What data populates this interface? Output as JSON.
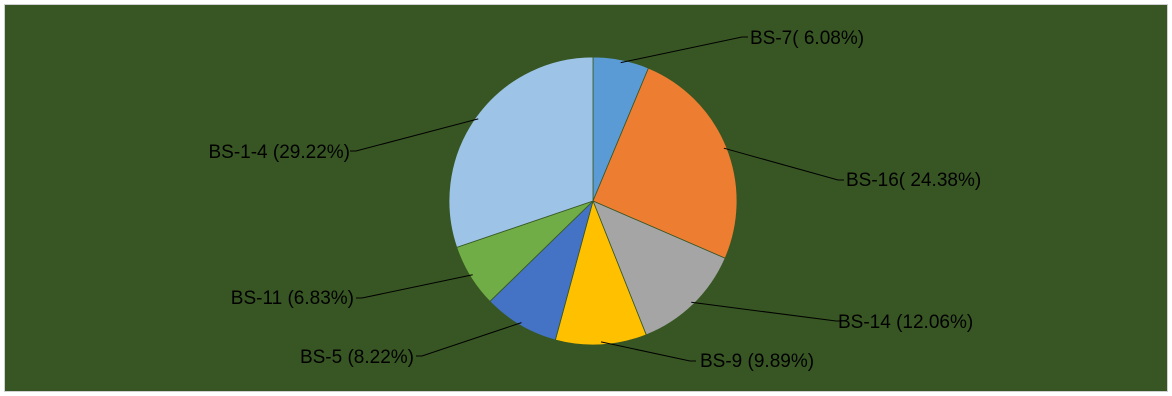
{
  "chart_data": {
    "type": "pie",
    "title": "",
    "slices": [
      {
        "category": "BS-7",
        "value": 6.08,
        "label": "BS-7( 6.08%)",
        "color": "#5B9BD5"
      },
      {
        "category": "BS-16",
        "value": 24.38,
        "label": "BS-16( 24.38%)",
        "color": "#ED7D31"
      },
      {
        "category": "BS-14",
        "value": 12.06,
        "label": "BS-14 (12.06%)",
        "color": "#A5A5A5"
      },
      {
        "category": "BS-9",
        "value": 9.89,
        "label": "BS-9 (9.89%)",
        "color": "#FFC000"
      },
      {
        "category": "BS-5",
        "value": 8.22,
        "label": "BS-5 (8.22%)",
        "color": "#4472C4"
      },
      {
        "category": "BS-11",
        "value": 6.83,
        "label": "BS-11 (6.83%)",
        "color": "#70AD47"
      },
      {
        "category": "BS-1-4",
        "value": 29.22,
        "label": "BS-1-4 (29.22%)",
        "color": "#9DC3E6"
      }
    ],
    "legend": "none",
    "data_labels": "outside-with-leader-lines",
    "background_color": "#375623"
  }
}
